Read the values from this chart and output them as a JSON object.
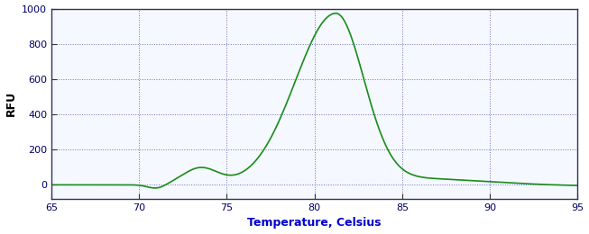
{
  "title": "",
  "xlabel": "Temperature, Celsius",
  "ylabel": "RFU",
  "xlim": [
    65,
    95
  ],
  "ylim": [
    -80,
    1000
  ],
  "yticks": [
    0,
    200,
    400,
    600,
    800,
    1000
  ],
  "xticks": [
    65,
    70,
    75,
    80,
    85,
    90,
    95
  ],
  "line_color": "#1a8c1a",
  "line_width": 1.2,
  "bg_color": "#ffffff",
  "plot_bg_color": "#f5f8ff",
  "grid_color": "#5555aa",
  "xlabel_color": "#0000cc",
  "ylabel_color": "#000000",
  "tick_label_color": "#000066",
  "peak_temp": 81.2,
  "peak_rfu": 960
}
